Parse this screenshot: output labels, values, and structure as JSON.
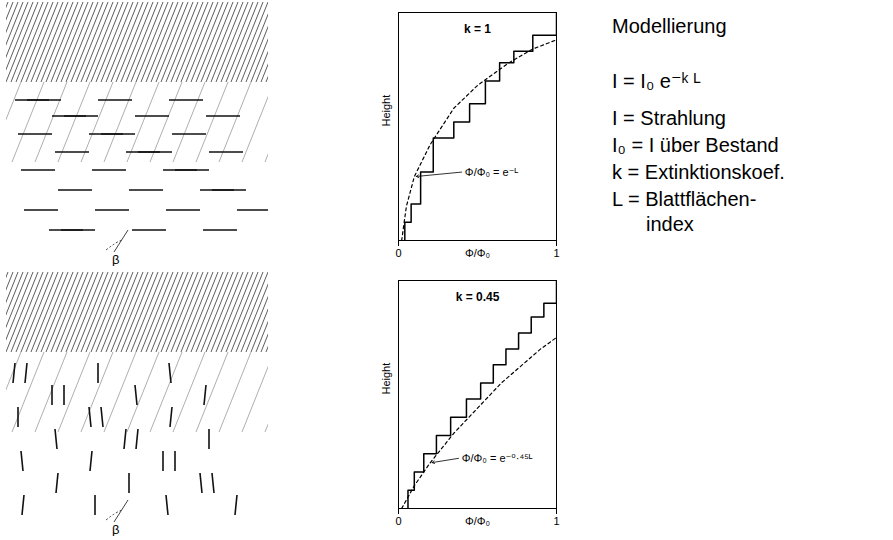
{
  "chart_data": [
    {
      "type": "line",
      "title": "k = 1",
      "x_label": "Φ/Φ₀",
      "y_label": "Height",
      "xlim": [
        0,
        1
      ],
      "xticks": [
        0,
        1
      ],
      "ylim": [
        0,
        1
      ],
      "yticks": [],
      "tick_labels": "x",
      "annotations": [
        "Φ/Φ₀ = e⁻ᴸ"
      ],
      "series": [
        {
          "type": "step",
          "line_style": "solid",
          "color": "#000000",
          "x": [
            0.04,
            0.08,
            0.14,
            0.22,
            0.35,
            0.45,
            0.55,
            0.64,
            0.73,
            0.85,
            1.0,
            1.0
          ],
          "values": [
            0,
            0.08,
            0.16,
            0.3,
            0.45,
            0.52,
            0.6,
            0.7,
            0.78,
            0.83,
            0.9,
            1.0
          ]
        },
        {
          "type": "line",
          "line_style": "dashed",
          "color": "#000000",
          "x": [
            0.02,
            0.05,
            0.1,
            0.2,
            0.35,
            0.5,
            0.7,
            0.85,
            1.0
          ],
          "values": [
            0,
            0.15,
            0.28,
            0.42,
            0.58,
            0.68,
            0.78,
            0.84,
            0.88
          ]
        }
      ]
    },
    {
      "type": "line",
      "title": "k = 0.45",
      "x_label": "Φ/Φ₀",
      "y_label": "Height",
      "xlim": [
        0,
        1
      ],
      "xticks": [
        0,
        1
      ],
      "ylim": [
        0,
        1
      ],
      "yticks": [],
      "tick_labels": "x",
      "annotations": [
        "Φ/Φ₀ = e⁻⁰·⁴⁵ᴸ"
      ],
      "series": [
        {
          "type": "step",
          "line_style": "solid",
          "color": "#000000",
          "x": [
            0.06,
            0.1,
            0.16,
            0.24,
            0.33,
            0.43,
            0.52,
            0.6,
            0.68,
            0.76,
            0.84,
            0.92,
            1.0,
            1.0
          ],
          "values": [
            0,
            0.08,
            0.16,
            0.24,
            0.32,
            0.4,
            0.48,
            0.55,
            0.63,
            0.7,
            0.77,
            0.84,
            0.9,
            1.0
          ]
        },
        {
          "type": "line",
          "line_style": "dashed",
          "color": "#000000",
          "x": [
            0.02,
            0.1,
            0.2,
            0.35,
            0.5,
            0.65,
            0.8,
            0.9,
            1.0
          ],
          "values": [
            0,
            0.1,
            0.2,
            0.33,
            0.44,
            0.55,
            0.64,
            0.7,
            0.75
          ]
        }
      ]
    }
  ],
  "illustrations": [
    {
      "angle_label": "β"
    },
    {
      "angle_label": "β"
    }
  ],
  "text_panel": {
    "title": "Modellierung",
    "formula": "I = I₀ e⁻ᵏ ᴸ",
    "definitions": [
      "I = Strahlung",
      "I₀ = I über Bestand",
      "k = Extinktionskoef.",
      "L = Blattflächen-\nindex"
    ]
  }
}
